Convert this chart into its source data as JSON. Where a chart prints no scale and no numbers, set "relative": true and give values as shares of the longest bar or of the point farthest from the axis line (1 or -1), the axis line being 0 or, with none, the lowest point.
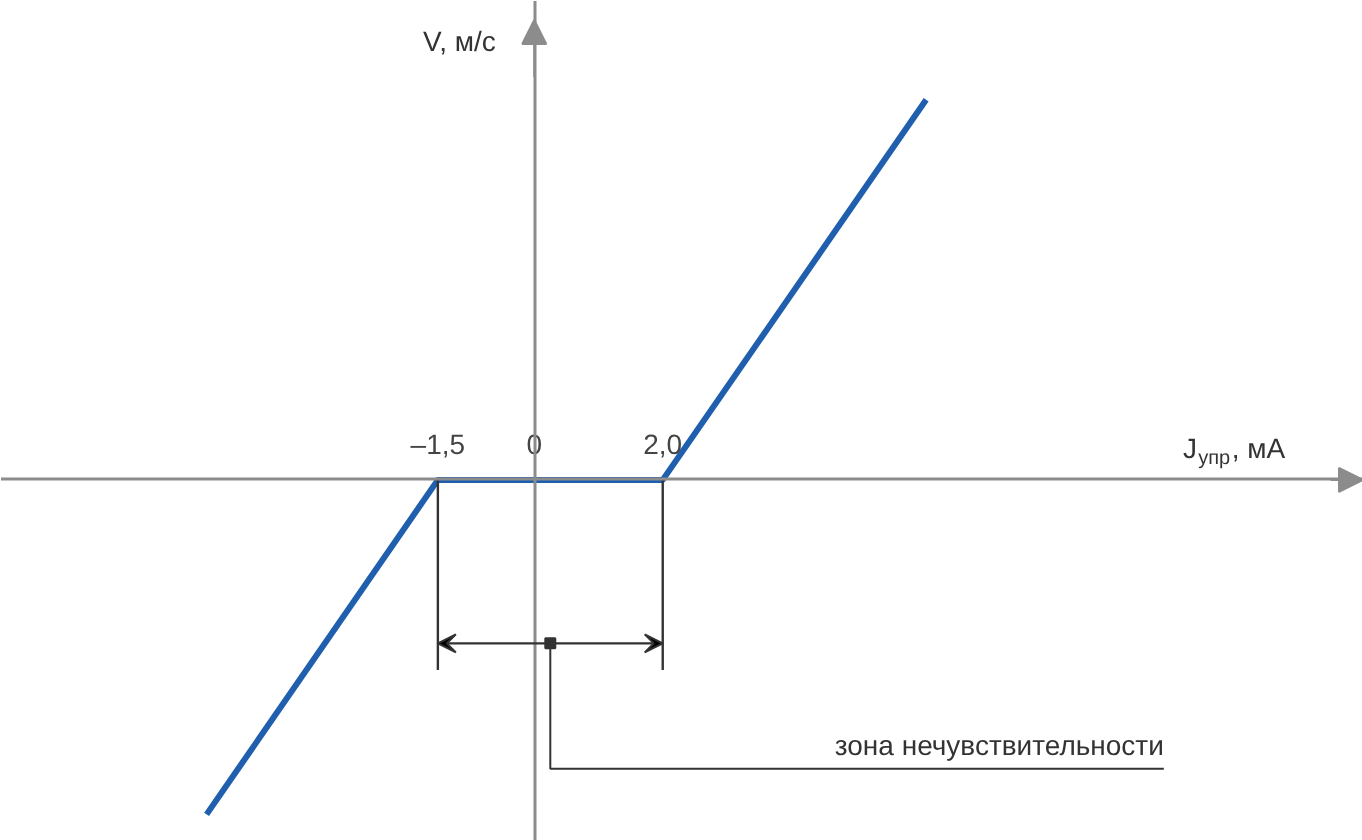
{
  "chart_data": {
    "type": "line",
    "relative": true,
    "xlabel": "J$_{упр}$, мА",
    "ylabel": "V, м/с",
    "xlim": [
      -8.3,
      12.9
    ],
    "xticks": [
      {
        "value": -1.5,
        "label": "–1,5"
      },
      0,
      {
        "value": 2.0,
        "label": "2,0"
      }
    ],
    "series": [
      {
        "color": "#1f5fae",
        "x": [
          -5.1,
          -1.5,
          2.0,
          6.1
        ],
        "values": [
          -0.88,
          0,
          0,
          1
        ]
      }
    ],
    "ref_lines": [
      {
        "axis": "x",
        "value": -1.5
      },
      {
        "axis": "x",
        "value": 2.0
      }
    ],
    "annotations": [
      "зона нечувствительности"
    ]
  }
}
